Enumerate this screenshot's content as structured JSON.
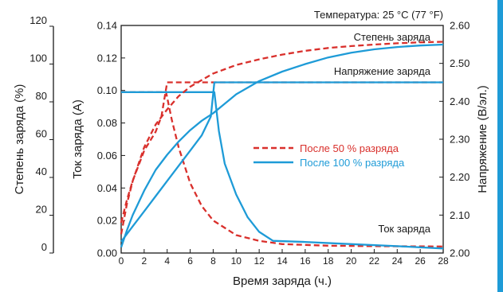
{
  "colors": {
    "accent": "#1e9bd7",
    "series_50": "#d9302c",
    "series_100": "#1e9bd7",
    "axis": "#1a1a1a"
  },
  "chart_data": {
    "type": "line",
    "title": "Температура: 25 °C (77 °F)",
    "xlabel": "Время заряда (ч.)",
    "ylabel_left_outer": "Степень заряда (%)",
    "ylabel_left_inner": "Ток заряда (A)",
    "ylabel_right": "Напряжение (В/эл.)",
    "x_ticks": [
      "0",
      "2",
      "4",
      "6",
      "8",
      "10",
      "12",
      "14",
      "16",
      "18",
      "20",
      "22",
      "24",
      "26",
      "28"
    ],
    "xlim": [
      0,
      28
    ],
    "current_ticks": [
      "0.00",
      "0.02",
      "0.04",
      "0.06",
      "0.08",
      "0.10",
      "0.12",
      "0.14"
    ],
    "current_lim": [
      0,
      0.14
    ],
    "soc_ticks": [
      "0",
      "20",
      "40",
      "60",
      "80",
      "100",
      "120"
    ],
    "soc_lim": [
      0,
      120
    ],
    "voltage_ticks": [
      "2.00",
      "2.10",
      "2.20",
      "2.30",
      "2.40",
      "2.50",
      "2.60"
    ],
    "voltage_lim": [
      2.0,
      2.6
    ],
    "curve_labels": {
      "soc": "Степень заряда",
      "voltage": "Напряжение заряда",
      "current": "Ток заряда"
    },
    "legend": [
      {
        "name": "После 50 % разряда",
        "style": "dashed",
        "color": "#d9302c"
      },
      {
        "name": "После 100 % разряда",
        "style": "solid",
        "color": "#1e9bd7"
      }
    ],
    "legend_position": "center-right",
    "series": [
      {
        "key": "current_50",
        "quantity": "current",
        "style": "dashed",
        "color": "#d9302c",
        "points": [
          [
            0,
            0.099
          ],
          [
            3.9,
            0.099
          ],
          [
            4.4,
            0.082
          ],
          [
            5,
            0.065
          ],
          [
            6,
            0.043
          ],
          [
            7,
            0.029
          ],
          [
            8,
            0.02
          ],
          [
            10,
            0.011
          ],
          [
            12,
            0.0075
          ],
          [
            14,
            0.0055
          ],
          [
            18,
            0.0045
          ],
          [
            22,
            0.0042
          ],
          [
            28,
            0.004
          ]
        ]
      },
      {
        "key": "current_100",
        "quantity": "current",
        "style": "solid",
        "color": "#1e9bd7",
        "points": [
          [
            0,
            0.099
          ],
          [
            8.1,
            0.099
          ],
          [
            8.5,
            0.075
          ],
          [
            9,
            0.055
          ],
          [
            10,
            0.036
          ],
          [
            11,
            0.022
          ],
          [
            12,
            0.013
          ],
          [
            13.2,
            0.0075
          ],
          [
            16,
            0.0068
          ],
          [
            20,
            0.0055
          ],
          [
            24,
            0.0042
          ],
          [
            28,
            0.0028
          ]
        ]
      },
      {
        "key": "voltage_50",
        "quantity": "voltage",
        "style": "dashed",
        "color": "#d9302c",
        "points": [
          [
            0,
            2.08
          ],
          [
            0.5,
            2.14
          ],
          [
            1,
            2.19
          ],
          [
            2,
            2.27
          ],
          [
            3,
            2.32
          ],
          [
            3.5,
            2.36
          ],
          [
            4,
            2.45
          ],
          [
            28,
            2.45
          ]
        ]
      },
      {
        "key": "voltage_100",
        "quantity": "voltage",
        "style": "solid",
        "color": "#1e9bd7",
        "points": [
          [
            0,
            2.03
          ],
          [
            1,
            2.07
          ],
          [
            2,
            2.11
          ],
          [
            3,
            2.15
          ],
          [
            4,
            2.19
          ],
          [
            5,
            2.23
          ],
          [
            6,
            2.27
          ],
          [
            7,
            2.31
          ],
          [
            7.8,
            2.36
          ],
          [
            8.1,
            2.45
          ],
          [
            28,
            2.45
          ]
        ]
      },
      {
        "key": "soc_50",
        "quantity": "soc",
        "style": "dashed",
        "color": "#d9302c",
        "points": [
          [
            0,
            10
          ],
          [
            0.5,
            26
          ],
          [
            1,
            38
          ],
          [
            2,
            56
          ],
          [
            3,
            68
          ],
          [
            4,
            76
          ],
          [
            5,
            83
          ],
          [
            6,
            88
          ],
          [
            8,
            95
          ],
          [
            10,
            99.5
          ],
          [
            12,
            102.5
          ],
          [
            14,
            105
          ],
          [
            16,
            107
          ],
          [
            18,
            108.5
          ],
          [
            20,
            109.5
          ],
          [
            22,
            110.3
          ],
          [
            24,
            111
          ],
          [
            26,
            111.5
          ],
          [
            28,
            111.8
          ]
        ]
      },
      {
        "key": "soc_100",
        "quantity": "soc",
        "style": "solid",
        "color": "#1e9bd7",
        "points": [
          [
            0,
            3
          ],
          [
            0.5,
            12
          ],
          [
            1,
            20
          ],
          [
            2,
            33
          ],
          [
            3,
            44
          ],
          [
            4,
            52
          ],
          [
            5,
            59
          ],
          [
            6,
            65
          ],
          [
            7,
            70
          ],
          [
            8,
            74
          ],
          [
            9,
            79
          ],
          [
            10,
            84
          ],
          [
            12,
            91
          ],
          [
            14,
            96
          ],
          [
            16,
            100
          ],
          [
            18,
            103.5
          ],
          [
            20,
            106
          ],
          [
            22,
            107.8
          ],
          [
            24,
            109
          ],
          [
            26,
            109.8
          ],
          [
            28,
            110.3
          ]
        ]
      }
    ]
  }
}
